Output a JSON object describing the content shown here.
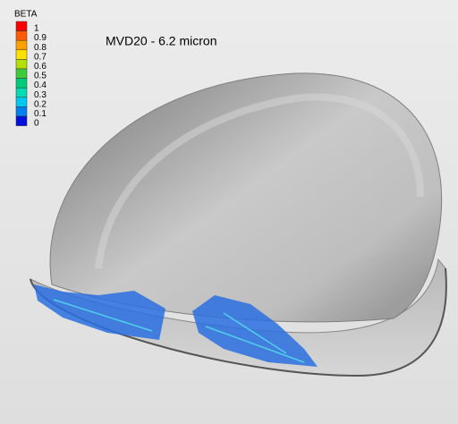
{
  "title": "MVD20 - 6.2 micron",
  "legend": {
    "title": "BETA",
    "entries": [
      {
        "label": "1",
        "color": "#ff0000"
      },
      {
        "label": "0.9",
        "color": "#ff5a00"
      },
      {
        "label": "0.8",
        "color": "#ffa000"
      },
      {
        "label": "0.7",
        "color": "#ffe000"
      },
      {
        "label": "0.6",
        "color": "#b4e000"
      },
      {
        "label": "0.5",
        "color": "#3ccc3c"
      },
      {
        "label": "0.4",
        "color": "#00cc78"
      },
      {
        "label": "0.3",
        "color": "#00dcb4"
      },
      {
        "label": "0.2",
        "color": "#00c8f0"
      },
      {
        "label": "0.1",
        "color": "#0080ee"
      },
      {
        "label": "0",
        "color": "#0010dc"
      }
    ]
  }
}
